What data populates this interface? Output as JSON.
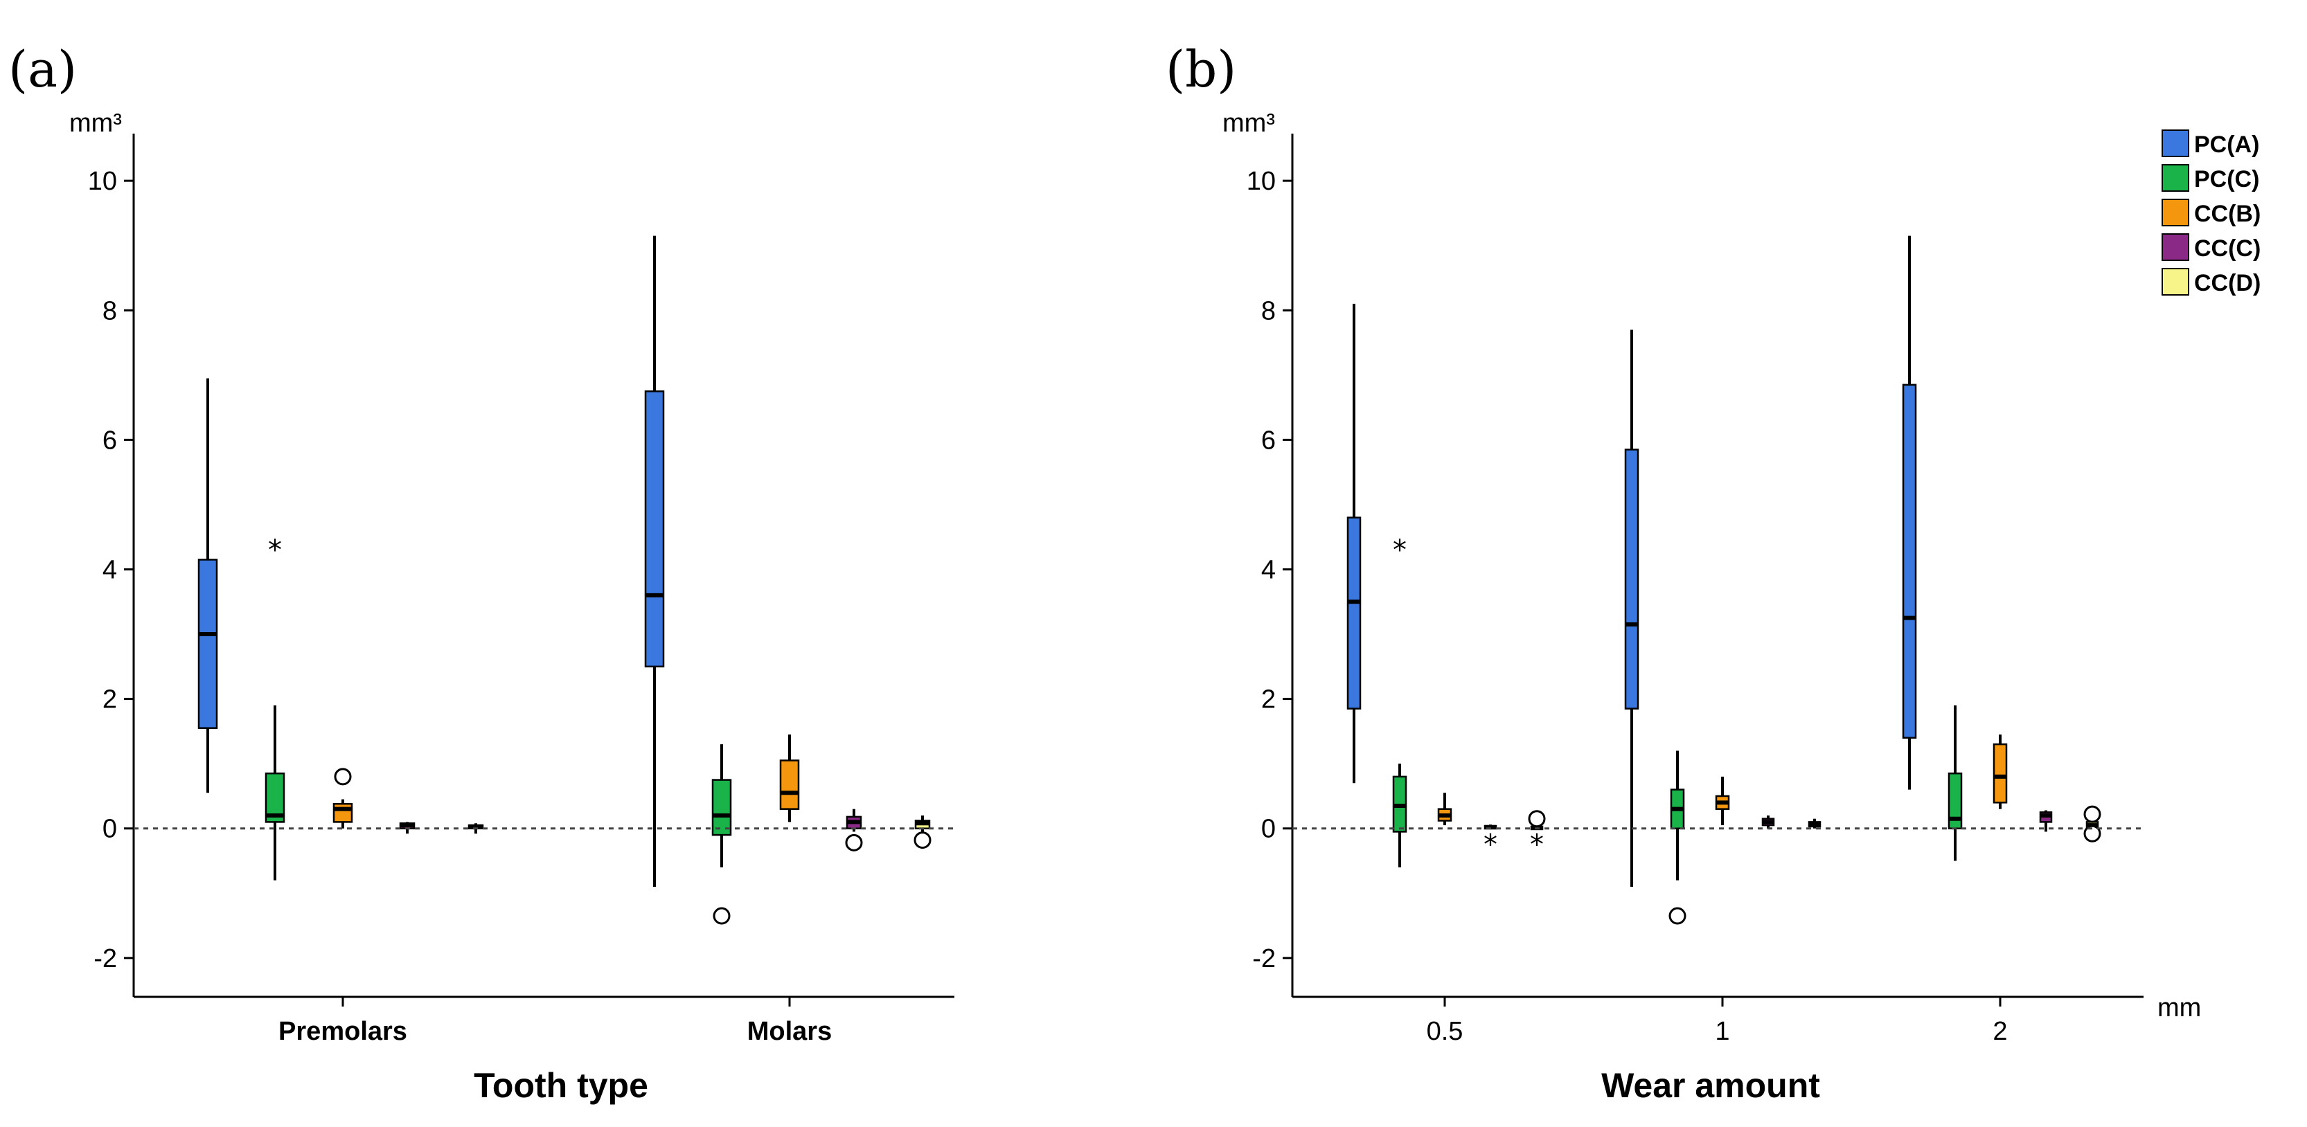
{
  "colors": {
    "PC(A)": "#3a78e0",
    "PC(C)": "#19b34a",
    "CC(B)": "#f5960f",
    "CC(C)": "#8a2a86",
    "CC(D)": "#f7f48a"
  },
  "legend": [
    "PC(A)",
    "PC(C)",
    "CC(B)",
    "CC(C)",
    "CC(D)"
  ],
  "chart_data": [
    {
      "type": "box",
      "panel_label": "(a)",
      "ylabel": "mm³",
      "xlabel": "Tooth type",
      "ylim": [
        -2.6,
        10.6
      ],
      "yticks": [
        -2,
        0,
        2,
        4,
        6,
        8,
        10
      ],
      "reference_line": 0,
      "categories": [
        "Premolars",
        "Molars"
      ],
      "groups": [
        {
          "category": "Premolars",
          "boxes": [
            {
              "series": "PC(A)",
              "min": 0.55,
              "q1": 1.55,
              "median": 3.0,
              "q3": 4.15,
              "max": 6.95,
              "outliers": []
            },
            {
              "series": "PC(C)",
              "min": -0.8,
              "q1": 0.1,
              "median": 0.2,
              "q3": 0.85,
              "max": 1.9,
              "outliers": [
                {
                  "value": 4.35,
                  "type": "extreme"
                }
              ]
            },
            {
              "series": "CC(B)",
              "min": 0.0,
              "q1": 0.1,
              "median": 0.3,
              "q3": 0.38,
              "max": 0.45,
              "outliers": [
                {
                  "value": 0.8,
                  "type": "outlier"
                }
              ]
            },
            {
              "series": "CC(C)",
              "min": -0.08,
              "q1": 0.0,
              "median": 0.05,
              "q3": 0.08,
              "max": 0.1,
              "outliers": []
            },
            {
              "series": "CC(D)",
              "min": -0.08,
              "q1": 0.0,
              "median": 0.03,
              "q3": 0.05,
              "max": 0.08,
              "outliers": []
            }
          ]
        },
        {
          "category": "Molars",
          "boxes": [
            {
              "series": "PC(A)",
              "min": -0.9,
              "q1": 2.5,
              "median": 3.6,
              "q3": 6.75,
              "max": 9.15,
              "outliers": []
            },
            {
              "series": "PC(C)",
              "min": -0.6,
              "q1": -0.1,
              "median": 0.2,
              "q3": 0.75,
              "max": 1.3,
              "outliers": [
                {
                  "value": -1.35,
                  "type": "outlier"
                }
              ]
            },
            {
              "series": "CC(B)",
              "min": 0.1,
              "q1": 0.3,
              "median": 0.55,
              "q3": 1.05,
              "max": 1.45,
              "outliers": []
            },
            {
              "series": "CC(C)",
              "min": -0.05,
              "q1": 0.0,
              "median": 0.1,
              "q3": 0.18,
              "max": 0.3,
              "outliers": [
                {
                  "value": -0.22,
                  "type": "outlier"
                }
              ]
            },
            {
              "series": "CC(D)",
              "min": -0.05,
              "q1": 0.0,
              "median": 0.08,
              "q3": 0.12,
              "max": 0.2,
              "outliers": [
                {
                  "value": -0.18,
                  "type": "outlier"
                }
              ]
            }
          ]
        }
      ]
    },
    {
      "type": "box",
      "panel_label": "(b)",
      "ylabel": "mm³",
      "xlabel": "Wear amount",
      "x_unit": "mm",
      "ylim": [
        -2.6,
        10.6
      ],
      "yticks": [
        -2,
        0,
        2,
        4,
        6,
        8,
        10
      ],
      "reference_line": 0,
      "categories": [
        "0.5",
        "1",
        "2"
      ],
      "groups": [
        {
          "category": "0.5",
          "boxes": [
            {
              "series": "PC(A)",
              "min": 0.7,
              "q1": 1.85,
              "median": 3.5,
              "q3": 4.8,
              "max": 8.1,
              "outliers": []
            },
            {
              "series": "PC(C)",
              "min": -0.6,
              "q1": -0.05,
              "median": 0.35,
              "q3": 0.8,
              "max": 1.0,
              "outliers": [
                {
                  "value": 4.35,
                  "type": "extreme"
                }
              ]
            },
            {
              "series": "CC(B)",
              "min": 0.05,
              "q1": 0.12,
              "median": 0.2,
              "q3": 0.3,
              "max": 0.55,
              "outliers": []
            },
            {
              "series": "CC(C)",
              "min": 0.0,
              "q1": 0.0,
              "median": 0.02,
              "q3": 0.04,
              "max": 0.06,
              "outliers": [
                {
                  "value": -0.2,
                  "type": "extreme"
                }
              ]
            },
            {
              "series": "CC(D)",
              "min": 0.0,
              "q1": 0.0,
              "median": 0.01,
              "q3": 0.03,
              "max": 0.05,
              "outliers": [
                {
                  "value": -0.2,
                  "type": "extreme"
                },
                {
                  "value": 0.15,
                  "type": "outlier"
                }
              ]
            }
          ]
        },
        {
          "category": "1",
          "boxes": [
            {
              "series": "PC(A)",
              "min": -0.9,
              "q1": 1.85,
              "median": 3.15,
              "q3": 5.85,
              "max": 7.7,
              "outliers": []
            },
            {
              "series": "PC(C)",
              "min": -0.8,
              "q1": 0.0,
              "median": 0.3,
              "q3": 0.6,
              "max": 1.2,
              "outliers": [
                {
                  "value": -1.35,
                  "type": "outlier"
                }
              ]
            },
            {
              "series": "CC(B)",
              "min": 0.05,
              "q1": 0.3,
              "median": 0.4,
              "q3": 0.5,
              "max": 0.8,
              "outliers": []
            },
            {
              "series": "CC(C)",
              "min": 0.0,
              "q1": 0.05,
              "median": 0.1,
              "q3": 0.15,
              "max": 0.2,
              "outliers": []
            },
            {
              "series": "CC(D)",
              "min": 0.0,
              "q1": 0.03,
              "median": 0.06,
              "q3": 0.1,
              "max": 0.15,
              "outliers": []
            }
          ]
        },
        {
          "category": "2",
          "boxes": [
            {
              "series": "PC(A)",
              "min": 0.6,
              "q1": 1.4,
              "median": 3.25,
              "q3": 6.85,
              "max": 9.15,
              "outliers": []
            },
            {
              "series": "PC(C)",
              "min": -0.5,
              "q1": 0.0,
              "median": 0.15,
              "q3": 0.85,
              "max": 1.9,
              "outliers": []
            },
            {
              "series": "CC(B)",
              "min": 0.3,
              "q1": 0.4,
              "median": 0.8,
              "q3": 1.3,
              "max": 1.45,
              "outliers": []
            },
            {
              "series": "CC(C)",
              "min": -0.05,
              "q1": 0.1,
              "median": 0.2,
              "q3": 0.25,
              "max": 0.28,
              "outliers": []
            },
            {
              "series": "CC(D)",
              "min": 0.0,
              "q1": 0.02,
              "median": 0.05,
              "q3": 0.1,
              "max": 0.12,
              "outliers": [
                {
                  "value": 0.22,
                  "type": "outlier"
                },
                {
                  "value": -0.08,
                  "type": "outlier"
                }
              ]
            }
          ]
        }
      ]
    }
  ]
}
